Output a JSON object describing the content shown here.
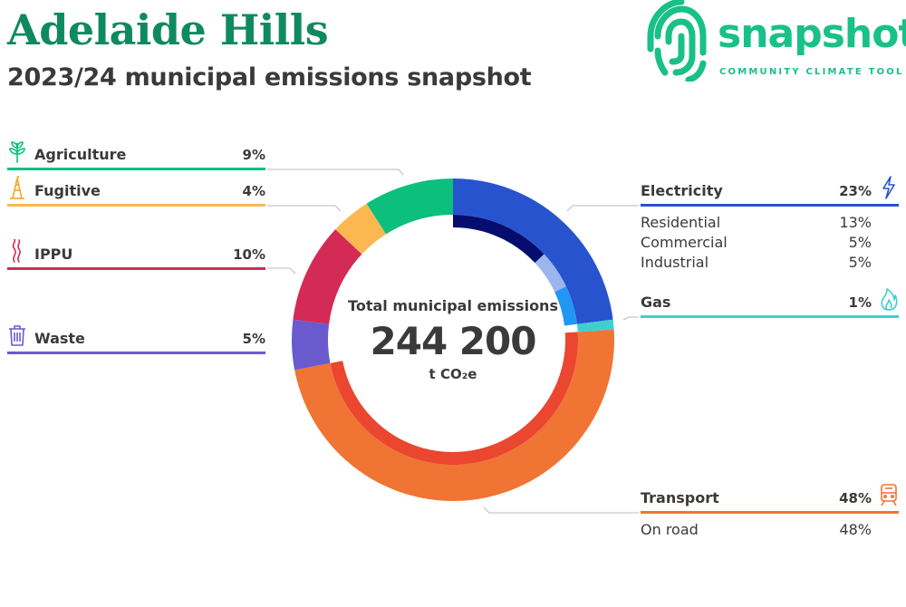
{
  "header": {
    "title": "Adelaide Hills",
    "subtitle": "2023/24 municipal emissions snapshot"
  },
  "logo": {
    "word": "snapshot",
    "tagline": "COMMUNITY CLIMATE TOOL",
    "color": "#19c088"
  },
  "center": {
    "label": "Total municipal emissions",
    "value": "244 200",
    "unit": "t CO₂e"
  },
  "chart_data": {
    "type": "pie",
    "title": "Total municipal emissions",
    "total": 244200,
    "unit": "t CO2e",
    "series": [
      {
        "name": "Electricity",
        "value": 23,
        "label": "23%",
        "color": "#2753cf",
        "icon": "lightning-icon",
        "breakdown": [
          {
            "name": "Residential",
            "value": 13,
            "label": "13%",
            "color": "#050e6e"
          },
          {
            "name": "Commercial",
            "value": 5,
            "label": "5%",
            "color": "#9cb5ee"
          },
          {
            "name": "Industrial",
            "value": 5,
            "label": "5%",
            "color": "#2196f3"
          }
        ]
      },
      {
        "name": "Gas",
        "value": 1,
        "label": "1%",
        "color": "#3fcfcf",
        "icon": "flame-icon",
        "breakdown": []
      },
      {
        "name": "Transport",
        "value": 48,
        "label": "48%",
        "color": "#f07434",
        "icon": "train-icon",
        "breakdown": [
          {
            "name": "On road",
            "value": 48,
            "label": "48%",
            "color": "#ea4630"
          }
        ]
      },
      {
        "name": "Waste",
        "value": 5,
        "label": "5%",
        "color": "#6a5acd",
        "icon": "trash-icon",
        "breakdown": []
      },
      {
        "name": "IPPU",
        "value": 10,
        "label": "10%",
        "color": "#d42a56",
        "icon": "smoke-icon",
        "breakdown": []
      },
      {
        "name": "Fugitive",
        "value": 4,
        "label": "4%",
        "color": "#fbb850",
        "icon": "oil-rig-icon",
        "breakdown": []
      },
      {
        "name": "Agriculture",
        "value": 9,
        "label": "9%",
        "color": "#0dbf7c",
        "icon": "plant-icon",
        "breakdown": []
      }
    ]
  }
}
